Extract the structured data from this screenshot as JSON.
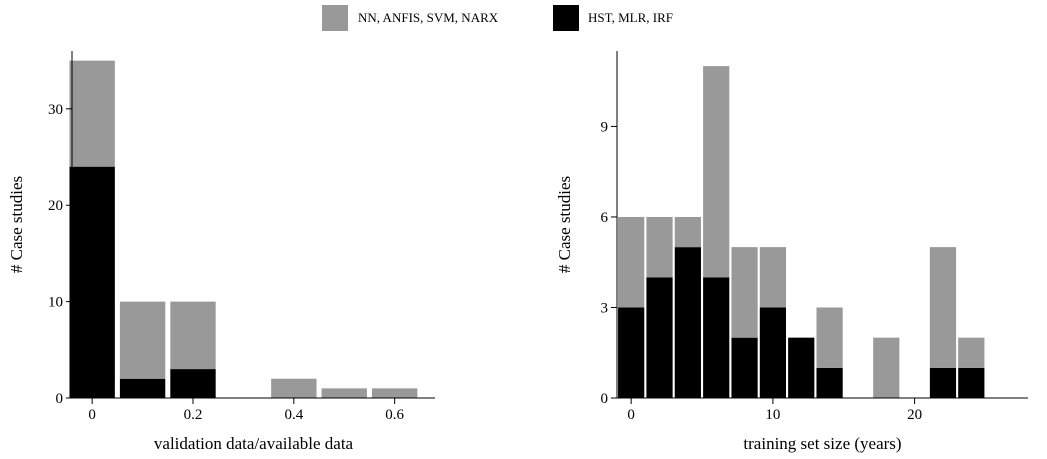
{
  "legend": {
    "entries": [
      {
        "label": "NN, ANFIS, SVM, NARX",
        "color": "#999999"
      },
      {
        "label": "HST, MLR, IRF",
        "color": "#000000"
      }
    ],
    "placement": "top-center"
  },
  "chart_data": [
    {
      "type": "bar",
      "stacked": true,
      "title": "",
      "xlabel": "validation data/available data",
      "ylabel": "# Case studies",
      "xlim": [
        -0.04,
        0.68
      ],
      "ylim": [
        0,
        36
      ],
      "bar_width": 0.09,
      "x": [
        0.0,
        0.1,
        0.2,
        0.4,
        0.5,
        0.6
      ],
      "series": [
        {
          "name": "HST, MLR, IRF",
          "color": "#000000",
          "values": [
            24,
            2,
            3,
            0,
            0,
            0
          ]
        },
        {
          "name": "NN, ANFIS, SVM, NARX",
          "color": "#999999",
          "values": [
            11,
            8,
            7,
            2,
            1,
            1
          ]
        }
      ],
      "xticks": [
        0,
        0.2,
        0.4,
        0.6
      ],
      "xtick_labels": [
        "0",
        "0.2",
        "0.4",
        "0.6"
      ],
      "yticks": [
        0,
        10,
        20,
        30
      ],
      "ytick_labels": [
        "0",
        "10",
        "20",
        "30"
      ]
    },
    {
      "type": "bar",
      "stacked": true,
      "title": "",
      "xlabel": "training set size (years)",
      "ylabel": "# Case studies",
      "xlim": [
        -1,
        28
      ],
      "ylim": [
        0,
        11.5
      ],
      "bar_width": 1.85,
      "x": [
        0,
        2,
        4,
        6,
        8,
        10,
        12,
        14,
        18,
        20,
        22,
        24
      ],
      "series": [
        {
          "name": "HST, MLR, IRF",
          "color": "#000000",
          "values": [
            3,
            4,
            5,
            4,
            2,
            3,
            2,
            1,
            0,
            0,
            1,
            1
          ]
        },
        {
          "name": "NN, ANFIS, SVM, NARX",
          "color": "#999999",
          "values": [
            3,
            2,
            1,
            7,
            3,
            2,
            0,
            2,
            2,
            0,
            4,
            1
          ]
        }
      ],
      "xticks": [
        0,
        10,
        20
      ],
      "xtick_labels": [
        "0",
        "10",
        "20"
      ],
      "yticks": [
        0,
        3,
        6,
        9
      ],
      "ytick_labels": [
        "0",
        "3",
        "6",
        "9"
      ]
    }
  ]
}
